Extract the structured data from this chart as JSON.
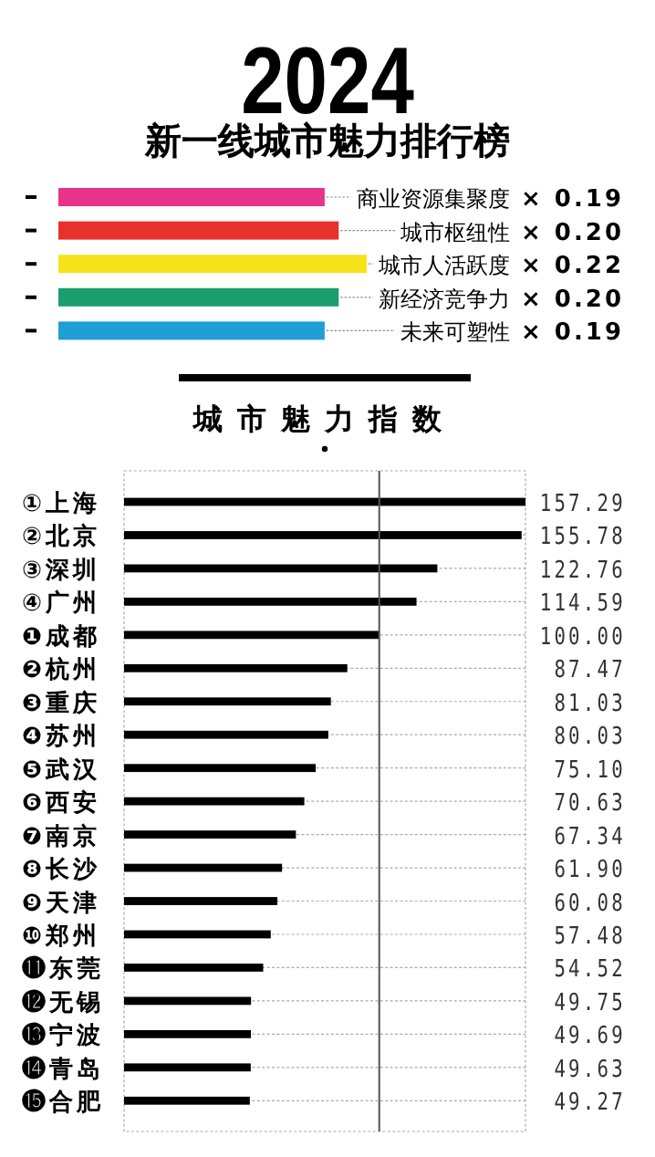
{
  "chart_data": [
    {
      "type": "bar",
      "orientation": "horizontal",
      "title": "2024",
      "subtitle": "新一线城市魅力排行榜",
      "categories": [
        "商业资源集聚度",
        "城市枢纽性",
        "城市人活跃度",
        "新经济竞争力",
        "未来可塑性"
      ],
      "values": [
        0.19,
        0.2,
        0.22,
        0.2,
        0.19
      ],
      "colors": [
        "#e8338a",
        "#e8302c",
        "#f7e11b",
        "#1a9e6e",
        "#1f9fd6"
      ],
      "value_labels": [
        "× 0.19",
        "× 0.20",
        "× 0.22",
        "× 0.20",
        "× 0.19"
      ]
    },
    {
      "type": "bar",
      "orientation": "horizontal",
      "title": "城市魅力指数",
      "categories": [
        "①上海",
        "②北京",
        "③深圳",
        "④广州",
        "❶成都",
        "❷杭州",
        "❸重庆",
        "❹苏州",
        "❺武汉",
        "❻西安",
        "❼南京",
        "❽长沙",
        "❾天津",
        "❿郑州",
        "⓫东莞",
        "⓬无锡",
        "⓭宁波",
        "⓮青岛",
        "⓯合肥"
      ],
      "values": [
        157.29,
        155.78,
        122.76,
        114.59,
        100.0,
        87.47,
        81.03,
        80.03,
        75.1,
        70.63,
        67.34,
        61.9,
        60.08,
        57.48,
        54.52,
        49.75,
        49.69,
        49.63,
        49.27
      ],
      "color": "#000000",
      "value_labels": [
        "157.29",
        "155.78",
        "122.76",
        "114.59",
        "100.00",
        "87.47",
        "81.03",
        "80.03",
        "75.10",
        "70.63",
        "67.34",
        "61.90",
        "60.08",
        "57.48",
        "54.52",
        "49.75",
        "49.69",
        "49.63",
        "49.27"
      ],
      "ref_lines": [
        {
          "axis": "x",
          "value": 100,
          "color": "#555555"
        }
      ],
      "grid": "y"
    }
  ]
}
